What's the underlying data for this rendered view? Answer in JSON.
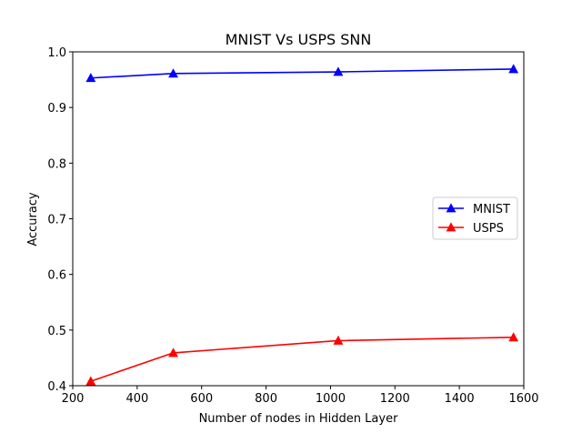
{
  "chart_data": {
    "type": "line",
    "title": "MNIST Vs USPS SNN",
    "xlabel": "Number of nodes in Hidden Layer",
    "ylabel": "Accuracy",
    "xlim": [
      200,
      1600
    ],
    "ylim": [
      0.4,
      1.0
    ],
    "xticks": [
      200,
      400,
      600,
      800,
      1000,
      1200,
      1400,
      1600
    ],
    "yticks": [
      0.4,
      0.5,
      0.6,
      0.7,
      0.8,
      0.9,
      1.0
    ],
    "ytick_labels": [
      "0.4",
      "0.5",
      "0.6",
      "0.7",
      "0.8",
      "0.9",
      "1.0"
    ],
    "grid": false,
    "legend_position": "center-right",
    "series": [
      {
        "name": "MNIST",
        "color": "#0000ff",
        "marker": "triangle-up",
        "x": [
          256,
          512,
          1024,
          1568
        ],
        "y": [
          0.953,
          0.961,
          0.964,
          0.969
        ]
      },
      {
        "name": "USPS",
        "color": "#ff0000",
        "marker": "triangle-up",
        "x": [
          256,
          512,
          1024,
          1568
        ],
        "y": [
          0.408,
          0.459,
          0.481,
          0.487
        ]
      }
    ]
  }
}
